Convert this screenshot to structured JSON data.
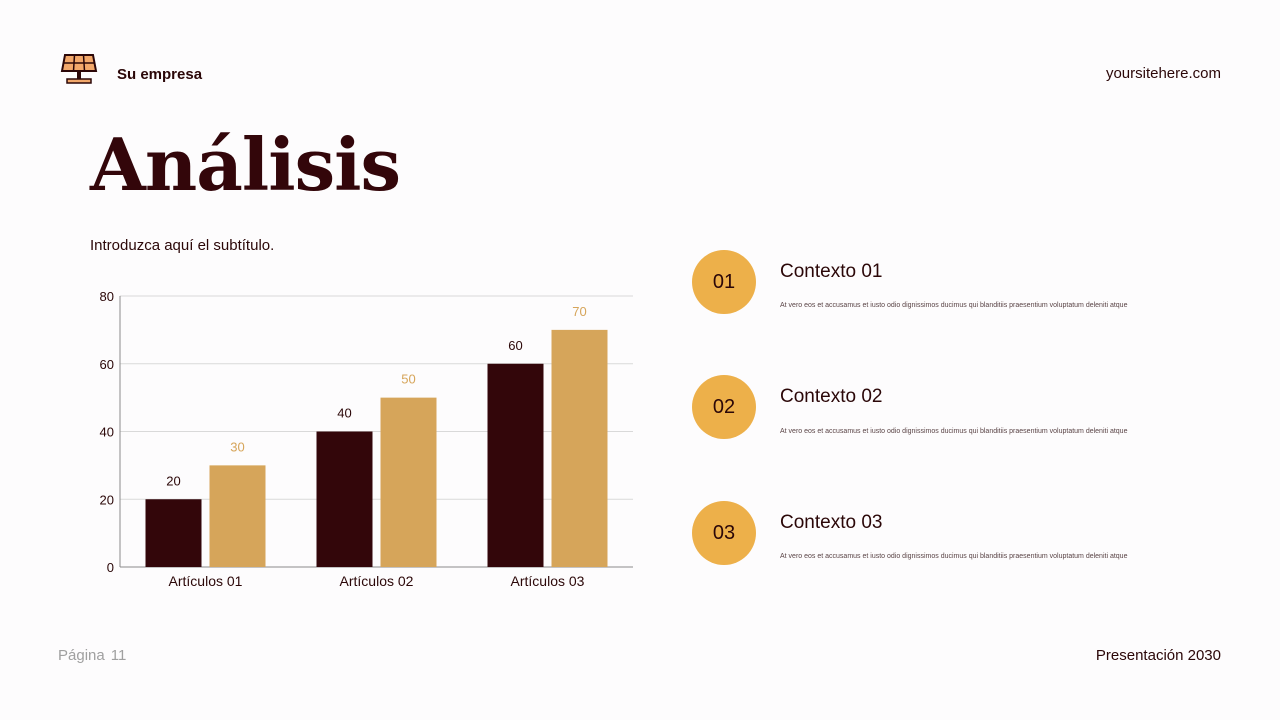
{
  "header": {
    "company": "Su empresa",
    "site": "yoursitehere.com"
  },
  "title": "Análisis",
  "subtitle": "Introduzca aquí el subtítulo.",
  "contexts": [
    {
      "number": "01",
      "title": "Contexto 01",
      "description": "At vero eos et accusamus et iusto odio dignissimos ducimus qui blanditiis praesentium voluptatum deleniti atque"
    },
    {
      "number": "02",
      "title": "Contexto 02",
      "description": "At vero eos et accusamus et iusto odio dignissimos ducimus qui blanditiis praesentium voluptatum deleniti atque"
    },
    {
      "number": "03",
      "title": "Contexto 03",
      "description": "At vero eos et accusamus et iusto odio dignissimos ducimus qui blanditiis praesentium voluptatum deleniti atque"
    }
  ],
  "footer": {
    "page_label": "Página",
    "page_number": "11",
    "presentation": "Presentación 2030"
  },
  "colors": {
    "dark": "#33060a",
    "gold": "#d6a55a",
    "accent": "#edb04a"
  },
  "chart_data": {
    "type": "bar",
    "categories": [
      "Artículos 01",
      "Artículos 02",
      "Artículos 03"
    ],
    "series": [
      {
        "values": [
          20,
          40,
          60
        ],
        "color": "#33060a"
      },
      {
        "values": [
          30,
          50,
          70
        ],
        "color": "#d6a55a"
      }
    ],
    "ylim": [
      0,
      80
    ],
    "yticks": [
      0,
      20,
      40,
      60,
      80
    ],
    "grid": true,
    "data_labels": true
  }
}
